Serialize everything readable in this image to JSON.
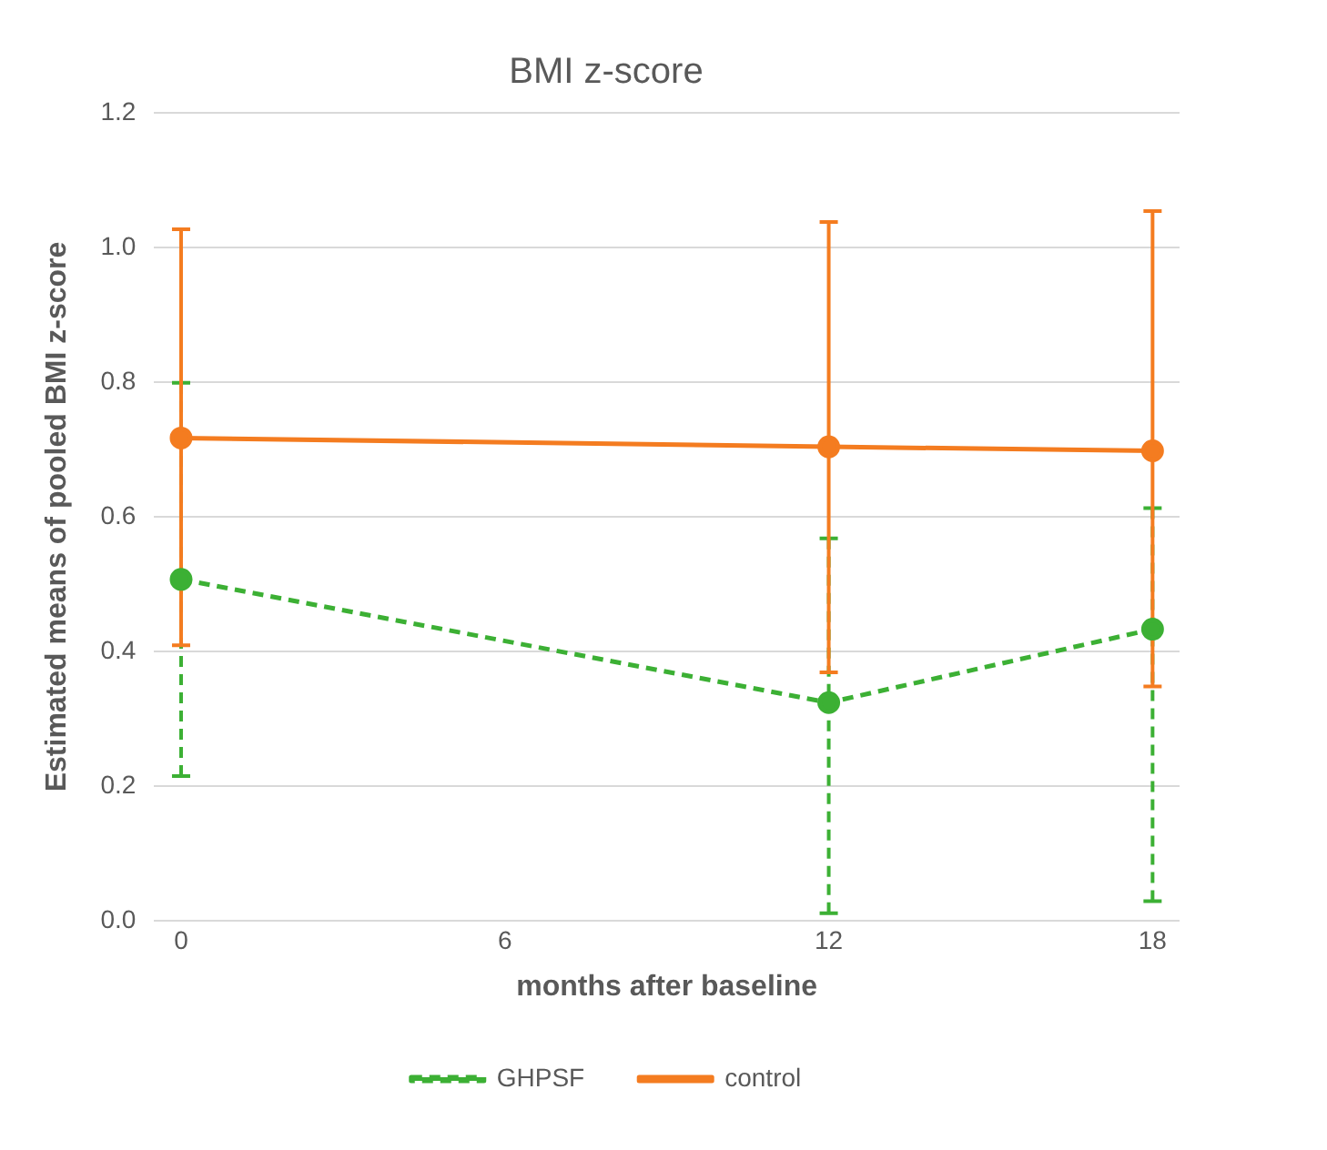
{
  "chart_data": {
    "type": "line",
    "title": "BMI z-score",
    "xlabel": "months after baseline",
    "ylabel": "Estimated means of pooled BMI z-score",
    "x": [
      0,
      12,
      18
    ],
    "xlim": [
      -0.5,
      18.5
    ],
    "xticks": [
      0,
      6,
      12,
      18
    ],
    "ylim": [
      0,
      1.2
    ],
    "yticks": [
      {
        "value": 0,
        "label": "0.0"
      },
      {
        "value": 0.2,
        "label": "0.2"
      },
      {
        "value": 0.4,
        "label": "0.4"
      },
      {
        "value": 0.6,
        "label": "0.6"
      },
      {
        "value": 0.8,
        "label": "0.8"
      },
      {
        "value": 1,
        "label": "1.0"
      },
      {
        "value": 1.2,
        "label": "1.2"
      }
    ],
    "grid": "y",
    "legend": "bottom",
    "marker": "circle",
    "series": [
      {
        "name": "GHPSF",
        "color": "#3cb034",
        "line_style": "dashed",
        "values": [
          0.507,
          0.324,
          0.433
        ],
        "errors": [
          [
            0.215,
            0.799
          ],
          [
            0.011,
            0.568
          ],
          [
            0.029,
            0.613
          ]
        ]
      },
      {
        "name": "control",
        "color": "#f47c20",
        "line_style": "solid",
        "values": [
          0.717,
          0.704,
          0.698
        ],
        "errors": [
          [
            0.409,
            1.027
          ],
          [
            0.369,
            1.038
          ],
          [
            0.348,
            1.054
          ]
        ]
      }
    ]
  }
}
